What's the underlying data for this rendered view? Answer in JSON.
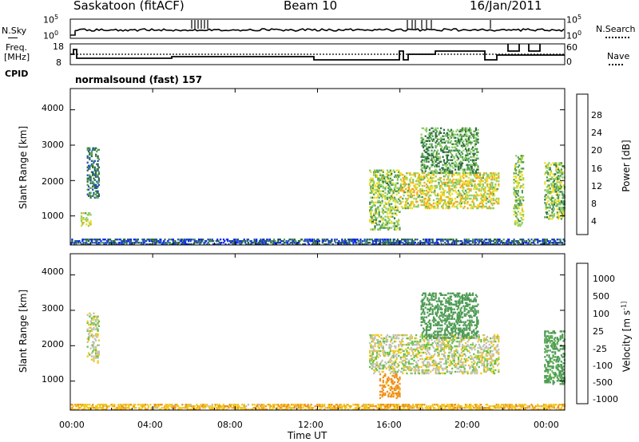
{
  "header": {
    "site": "Saskatoon (fitACF)",
    "beam": "Beam 10",
    "date": "16/Jan/2011"
  },
  "nsky_panel": {
    "left_label": "N.Sky",
    "right_label": "N.Search",
    "tick_top": "10^5",
    "tick_bottom": "10^0"
  },
  "freq_panel": {
    "left_label_line1": "Freq.",
    "left_label_line2": "[MHz]",
    "left_ticks": [
      "18",
      "8"
    ],
    "right_ticks": [
      "60",
      "0"
    ],
    "right_label": "Nave"
  },
  "cpid": {
    "label": "CPID",
    "program": "normalsound (fast) 157"
  },
  "chart_data": [
    {
      "type": "heatmap",
      "title": "",
      "xlabel": "",
      "ylabel": "Slant Range [km]",
      "y_ticks": [
        "1000",
        "2000",
        "3000",
        "4000"
      ],
      "ylim": [
        180,
        4600
      ],
      "colorbar": {
        "label": "Power [dB]",
        "ticks": [
          "4",
          "8",
          "12",
          "16",
          "20",
          "24",
          "28"
        ],
        "colors": [
          "#0a22ff",
          "#234fb8",
          "#2e6b3c",
          "#4f9e55",
          "#8fce63",
          "#f0dc22",
          "#f2a51b",
          "#e86114",
          "#f01010"
        ]
      },
      "echo_regions": [
        {
          "t": [
            0.8,
            1.4
          ],
          "r": [
            1500,
            2900
          ],
          "v": 11
        },
        {
          "t": [
            0.5,
            1.0
          ],
          "r": [
            700,
            1100
          ],
          "v": 20
        },
        {
          "t": [
            14.5,
            16.0
          ],
          "r": [
            600,
            2300
          ],
          "v": 17
        },
        {
          "t": [
            16.0,
            20.8
          ],
          "r": [
            1200,
            2200
          ],
          "v": 20
        },
        {
          "t": [
            17.0,
            19.8
          ],
          "r": [
            2200,
            3500
          ],
          "v": 14
        },
        {
          "t": [
            21.5,
            22.0
          ],
          "r": [
            700,
            2700
          ],
          "v": 17
        },
        {
          "t": [
            23.0,
            24.0
          ],
          "r": [
            900,
            2500
          ],
          "v": 16
        },
        {
          "t": [
            0.0,
            24.0
          ],
          "r": [
            180,
            350
          ],
          "v": 8
        }
      ]
    },
    {
      "type": "heatmap",
      "title": "",
      "xlabel": "Time UT",
      "ylabel": "Slant Range [km]",
      "x_ticks": [
        "00:00",
        "04:00",
        "08:00",
        "12:00",
        "16:00",
        "20:00",
        "00:00"
      ],
      "y_ticks": [
        "1000",
        "2000",
        "3000",
        "4000"
      ],
      "ylim": [
        180,
        4600
      ],
      "colorbar": {
        "label": "Velocity [m s^-1]",
        "ticks": [
          "1000",
          "500",
          "100",
          "25",
          "-25",
          "-100",
          "-500",
          "-1000"
        ],
        "colors": [
          "#1f3fb5",
          "#2f6a3c",
          "#4f9c55",
          "#67c243",
          "#c0c0b8",
          "#f0c81e",
          "#f0901a",
          "#e85a10",
          "#f01010"
        ]
      },
      "echo_regions": [
        {
          "t": [
            0.8,
            1.4
          ],
          "r": [
            1500,
            2900
          ],
          "v": 0
        },
        {
          "t": [
            14.5,
            20.8
          ],
          "r": [
            1200,
            2300
          ],
          "v": 0
        },
        {
          "t": [
            15.0,
            16.0
          ],
          "r": [
            500,
            1200
          ],
          "v": -150
        },
        {
          "t": [
            17.0,
            19.8
          ],
          "r": [
            2200,
            3500
          ],
          "v": 200
        },
        {
          "t": [
            23.0,
            24.0
          ],
          "r": [
            900,
            2400
          ],
          "v": 150
        },
        {
          "t": [
            0.0,
            24.0
          ],
          "r": [
            180,
            350
          ],
          "v": -80
        }
      ]
    }
  ],
  "colors": {
    "axis": "#000000",
    "background": "#ffffff"
  }
}
